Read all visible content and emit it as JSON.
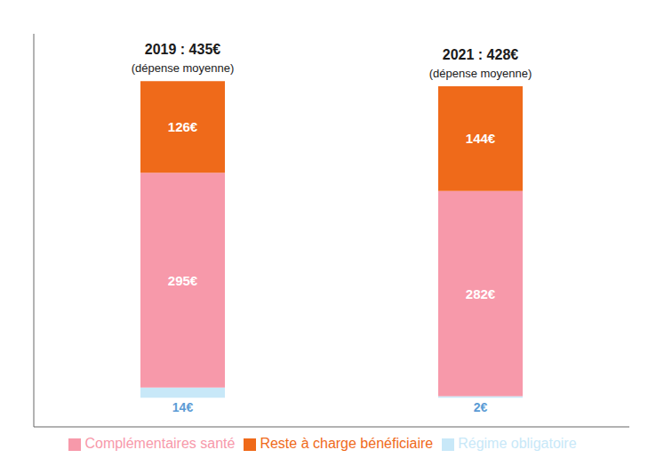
{
  "chart_data": {
    "type": "bar",
    "stacked": true,
    "categories": [
      null,
      null
    ],
    "annotations": [
      {
        "title": "2019 : 435€",
        "subtitle": "(dépense moyenne)"
      },
      {
        "title": "2021 : 428€",
        "subtitle": "(dépense moyenne)"
      }
    ],
    "series": [
      {
        "name": "Régime obligatoire",
        "color": "#c8e8f8",
        "values": [
          14,
          2
        ],
        "value_labels": [
          "14€",
          "2€"
        ]
      },
      {
        "name": "Complémentaires santé",
        "color": "#f799aa",
        "values": [
          295,
          282
        ],
        "value_labels": [
          "295€",
          "282€"
        ]
      },
      {
        "name": "Reste à charge bénéficiaire",
        "color": "#ef6a1a",
        "values": [
          126,
          144
        ],
        "value_labels": [
          "126€",
          "144€"
        ]
      }
    ],
    "ylim": [
      -40,
      500
    ],
    "data_labels": true,
    "tick_labels": false,
    "grid": false,
    "legend": "bottom"
  }
}
